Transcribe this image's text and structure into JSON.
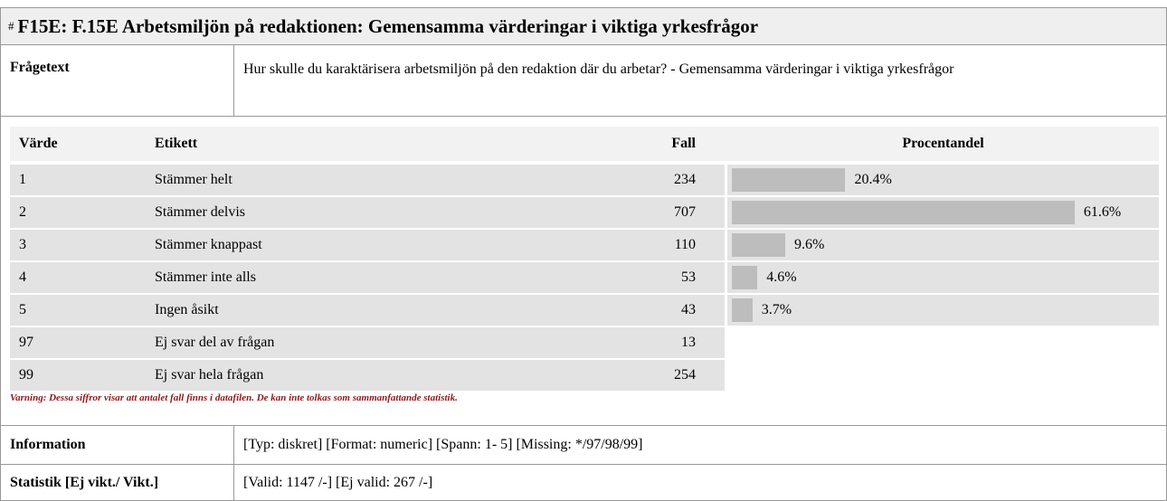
{
  "header": {
    "hash": "#",
    "title": "F15E: F.15E Arbetsmiljön på redaktionen: Gemensamma värderingar i viktiga yrkesfrågor"
  },
  "question": {
    "label": "Frågetext",
    "text": "Hur skulle du karaktärisera arbetsmiljön på den redaktion där du arbetar? - Gemensamma värderingar i viktiga yrkesfrågor"
  },
  "table": {
    "columns": [
      "Värde",
      "Etikett",
      "Fall",
      "Procentandel"
    ],
    "rows": [
      {
        "value": 1,
        "label": "Stämmer helt",
        "cases": 234,
        "percent": 20.4,
        "percent_label": "20.4%"
      },
      {
        "value": 2,
        "label": "Stämmer delvis",
        "cases": 707,
        "percent": 61.6,
        "percent_label": "61.6%"
      },
      {
        "value": 3,
        "label": "Stämmer knappast",
        "cases": 110,
        "percent": 9.6,
        "percent_label": "9.6%"
      },
      {
        "value": 4,
        "label": "Stämmer inte alls",
        "cases": 53,
        "percent": 4.6,
        "percent_label": "4.6%"
      },
      {
        "value": 5,
        "label": "Ingen åsikt",
        "cases": 43,
        "percent": 3.7,
        "percent_label": "3.7%"
      },
      {
        "value": 97,
        "label": "Ej svar del av frågan",
        "cases": 13
      },
      {
        "value": 99,
        "label": "Ej svar hela frågan",
        "cases": 254
      }
    ]
  },
  "warning": "Varning: Dessa siffror visar att antalet fall finns i datafilen. De kan inte tolkas som sammanfattande statistik.",
  "info": [
    {
      "label": "Information",
      "text": "[Typ: diskret] [Format: numeric] [Spann: 1- 5] [Missing: */97/98/99]"
    },
    {
      "label": "Statistik [Ej vikt./ Vikt.]",
      "text": "[Valid: 1147 /-] [Ej valid: 267 /-]"
    }
  ]
}
